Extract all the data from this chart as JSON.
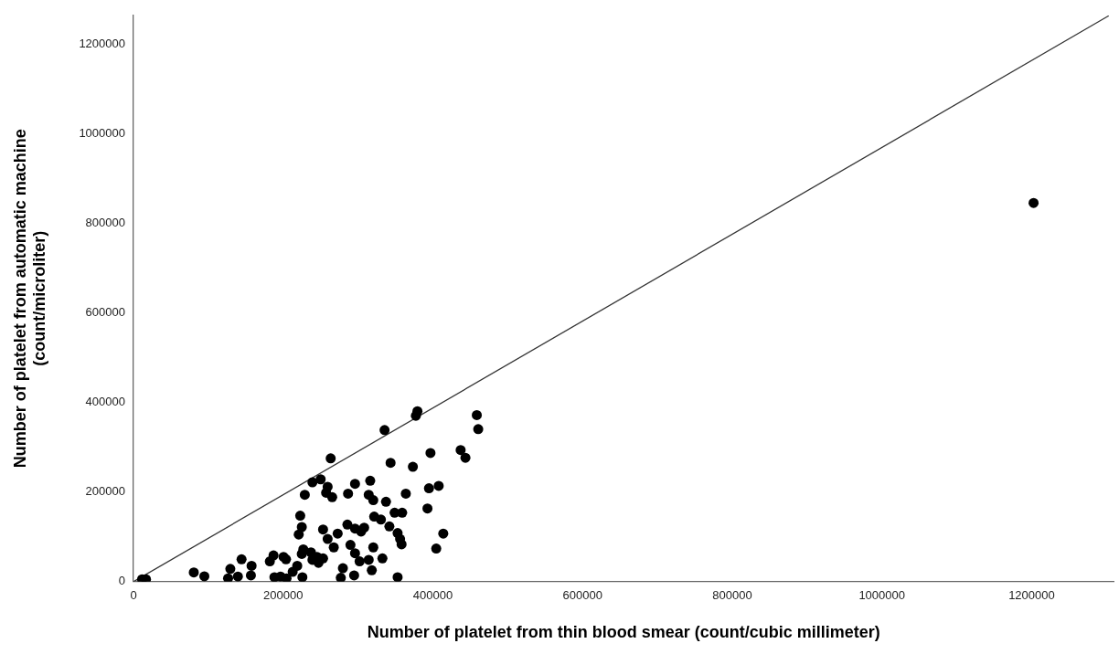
{
  "chart_data": {
    "type": "scatter",
    "xlabel": "Number of platelet from thin blood smear (count/cubic millimeter)",
    "ylabel": "Number of platelet from automatic machine\n(count/microliter)",
    "xlim": [
      0,
      1310000
    ],
    "ylim": [
      0,
      1265000
    ],
    "xticks": [
      0,
      200000,
      400000,
      600000,
      800000,
      1000000,
      1200000
    ],
    "yticks": [
      0,
      200000,
      400000,
      600000,
      800000,
      1000000,
      1200000
    ],
    "grid": false,
    "legend": false,
    "marker": "circle",
    "series": [
      {
        "color": "#000000",
        "x": [
          11500,
          16700,
          80600,
          94700,
          129400,
          126400,
          139500,
          144400,
          157800,
          156900,
          182200,
          187100,
          200500,
          203800,
          188300,
          196500,
          204500,
          212700,
          218800,
          226900,
          224900,
          225700,
          222800,
          224900,
          220800,
          228900,
          239100,
          250100,
          259400,
          257400,
          265500,
          263500,
          237100,
          245200,
          253300,
          247200,
          239100,
          253300,
          259400,
          272800,
          267600,
          285800,
          279800,
          277000,
          286700,
          296000,
          296000,
          304100,
          308200,
          289900,
          296000,
          302100,
          294800,
          316300,
          314300,
          320400,
          321600,
          330600,
          320400,
          314300,
          318400,
          332600,
          335500,
          343500,
          337400,
          341900,
          348900,
          359000,
          352900,
          356200,
          358200,
          352900,
          363900,
          373300,
          379400,
          377300,
          396800,
          394800,
          407800,
          392800,
          413900,
          404500,
          437100,
          443500,
          458700,
          460600,
          1202600
        ],
        "values": [
          5400,
          5400,
          20600,
          12000,
          28600,
          7400,
          11400,
          50000,
          35400,
          14000,
          45400,
          58600,
          55400,
          50000,
          10000,
          11400,
          7400,
          22000,
          35400,
          72000,
          62000,
          10000,
          147400,
          122000,
          105400,
          194000,
          222000,
          228600,
          212000,
          198600,
          188600,
          275400,
          65400,
          55400,
          52000,
          42000,
          48600,
          116600,
          95400,
          107400,
          76600,
          127400,
          30000,
          8600,
          196600,
          218600,
          118600,
          112000,
          120600,
          82000,
          63400,
          45400,
          14000,
          225400,
          194000,
          182000,
          145400,
          138600,
          76600,
          48600,
          25400,
          52000,
          338600,
          265400,
          178600,
          123400,
          154000,
          154000,
          108600,
          95400,
          83400,
          10000,
          196600,
          256600,
          380600,
          370600,
          287400,
          208600,
          214000,
          163400,
          107400,
          74000,
          294000,
          276600,
          372000,
          340600,
          846000
        ]
      },
      {
        "type": "line",
        "color": "#333333",
        "marker": "none",
        "line_style": "solid",
        "x": [
          0,
          1303000
        ],
        "values": [
          0,
          1264000
        ]
      }
    ]
  }
}
